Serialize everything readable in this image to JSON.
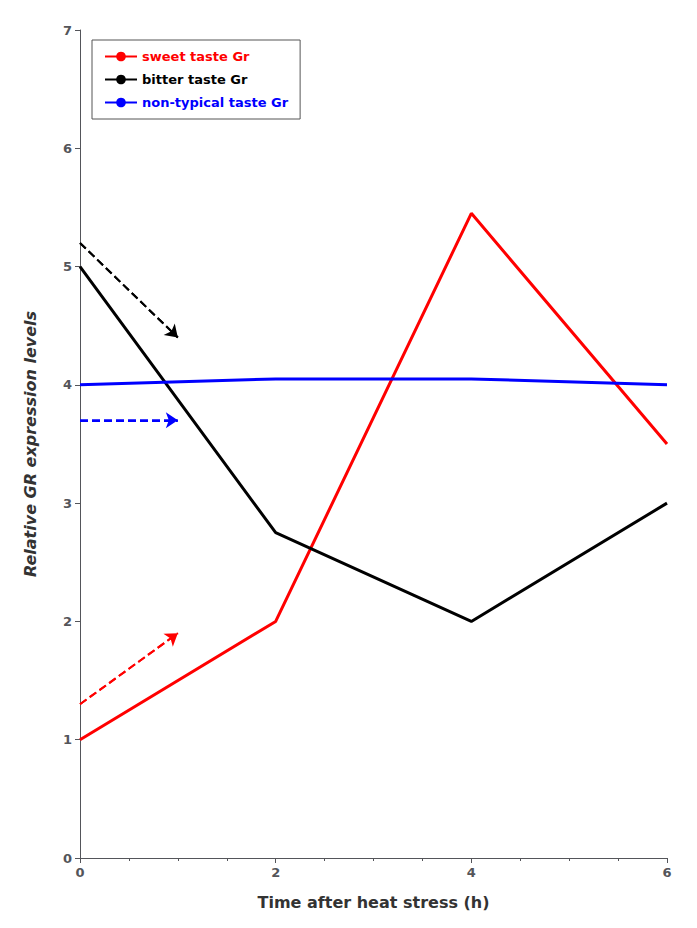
{
  "chart_data": {
    "type": "line",
    "xlabel": "Time after heat stress (h)",
    "ylabel": "Relative GR expression levels",
    "xlim": [
      0,
      6
    ],
    "ylim": [
      0,
      7
    ],
    "xticks": [
      0,
      2,
      4,
      6
    ],
    "yticks": [
      0,
      1,
      2,
      3,
      4,
      5,
      6,
      7
    ],
    "grid": false,
    "legend": "upper left",
    "series": [
      {
        "name": "sweet taste Gr",
        "color": "#FF0000",
        "line_style": "solid",
        "x": [
          0,
          2,
          4,
          6
        ],
        "values": [
          1.0,
          2.0,
          5.45,
          3.5
        ]
      },
      {
        "name": "bitter taste Gr",
        "color": "#000000",
        "line_style": "solid",
        "x": [
          0,
          2,
          4,
          6
        ],
        "values": [
          5.0,
          2.75,
          2.0,
          3.0
        ]
      },
      {
        "name": "non-typical taste Gr",
        "color": "#0000FF",
        "line_style": "solid",
        "x": [
          0,
          2,
          4,
          6
        ],
        "values": [
          4.0,
          4.05,
          4.05,
          4.0
        ]
      },
      {
        "color": "#FF0000",
        "line_style": "dashed",
        "marker": "arrow",
        "x": [
          0.0,
          1.0
        ],
        "values": [
          1.3,
          1.9
        ]
      },
      {
        "color": "#000000",
        "line_style": "dashed",
        "marker": "arrow",
        "x": [
          0.0,
          1.0
        ],
        "values": [
          5.2,
          4.4
        ]
      },
      {
        "color": "#0000FF",
        "line_style": "dashed",
        "marker": "arrow",
        "x": [
          0.0,
          1.0
        ],
        "values": [
          3.7,
          3.7
        ]
      }
    ]
  }
}
